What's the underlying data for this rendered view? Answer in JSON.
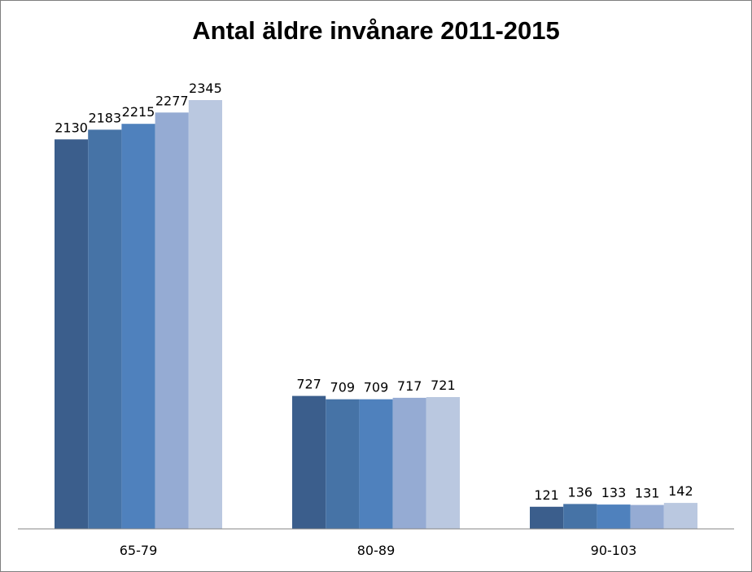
{
  "chart_data": {
    "type": "bar",
    "title": "Antal äldre invånare 2011-2015",
    "xlabel": "",
    "ylabel": "",
    "categories": [
      "65-79",
      "80-89",
      "90-103"
    ],
    "series": [
      {
        "values": [
          2130,
          727,
          121
        ],
        "color": "#3b5e8c"
      },
      {
        "values": [
          2183,
          709,
          136
        ],
        "color": "#4673a6"
      },
      {
        "values": [
          2215,
          709,
          133
        ],
        "color": "#4f81bd"
      },
      {
        "values": [
          2277,
          717,
          131
        ],
        "color": "#95abd3"
      },
      {
        "values": [
          2345,
          721,
          142
        ],
        "color": "#bac8e0"
      }
    ],
    "ylim": [
      0,
      2345
    ],
    "grid": false,
    "legend": "none",
    "data_labels": true
  }
}
